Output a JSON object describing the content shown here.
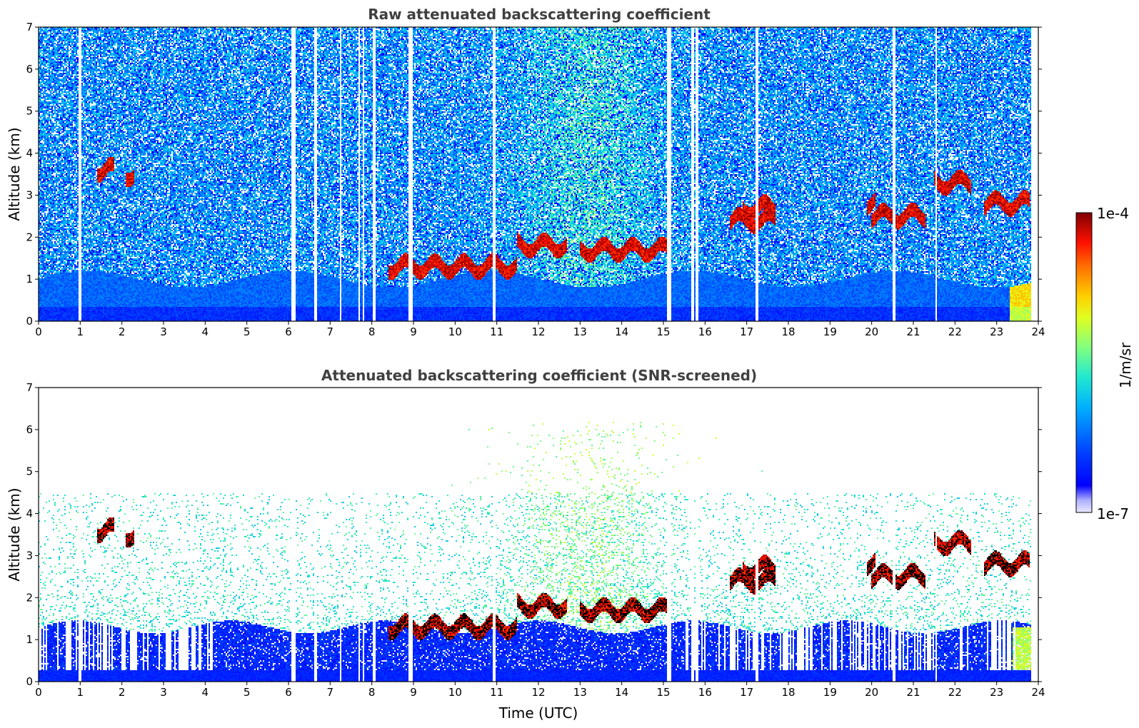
{
  "chart_data": [
    {
      "type": "heatmap",
      "title": "Raw attenuated backscattering coefficient",
      "xlabel": "",
      "ylabel": "Altitude (km)",
      "xlim": [
        0,
        24
      ],
      "ylim": [
        0,
        7
      ],
      "x_ticks": [
        "0",
        "1",
        "2",
        "3",
        "4",
        "5",
        "6",
        "7",
        "8",
        "9",
        "10",
        "11",
        "12",
        "13",
        "14",
        "15",
        "16",
        "17",
        "18",
        "19",
        "20",
        "21",
        "22",
        "23",
        "24"
      ],
      "y_ticks": [
        "0",
        "1",
        "2",
        "3",
        "4",
        "5",
        "6",
        "7"
      ],
      "boundary_layer_top_km": 1.0,
      "cloud_layers": [
        {
          "t_start": 1.4,
          "t_end": 1.8,
          "alt_km": 3.6
        },
        {
          "t_start": 2.1,
          "t_end": 2.3,
          "alt_km": 3.5
        },
        {
          "t_start": 8.4,
          "t_end": 11.5,
          "alt_km": 1.3
        },
        {
          "t_start": 11.5,
          "t_end": 12.7,
          "alt_km": 1.8
        },
        {
          "t_start": 13.0,
          "t_end": 15.1,
          "alt_km": 1.7
        },
        {
          "t_start": 16.6,
          "t_end": 17.7,
          "alt_km": 2.4
        },
        {
          "t_start": 16.9,
          "t_end": 17.7,
          "alt_km": 2.7
        },
        {
          "t_start": 19.9,
          "t_end": 20.1,
          "alt_km": 2.8
        },
        {
          "t_start": 20.0,
          "t_end": 21.3,
          "alt_km": 2.5
        },
        {
          "t_start": 21.5,
          "t_end": 22.4,
          "alt_km": 3.3
        },
        {
          "t_start": 22.7,
          "t_end": 23.8,
          "alt_km": 2.8
        }
      ]
    },
    {
      "type": "heatmap",
      "title": "Attenuated backscattering coefficient (SNR-screened)",
      "xlabel": "Time (UTC)",
      "ylabel": "Altitude (km)",
      "xlim": [
        0,
        24
      ],
      "ylim": [
        0,
        7
      ],
      "x_ticks": [
        "0",
        "1",
        "2",
        "3",
        "4",
        "5",
        "6",
        "7",
        "8",
        "9",
        "10",
        "11",
        "12",
        "13",
        "14",
        "15",
        "16",
        "17",
        "18",
        "19",
        "20",
        "21",
        "22",
        "23",
        "24"
      ],
      "y_ticks": [
        "0",
        "1",
        "2",
        "3",
        "4",
        "5",
        "6",
        "7"
      ],
      "boundary_layer_top_km": 1.3
    }
  ],
  "colorbar": {
    "max_label": "1e-4",
    "min_label": "1e-7",
    "label": "1/m/sr",
    "scale": "log",
    "range": [
      1e-07,
      0.0001
    ],
    "colormap": "jet",
    "bottom_color": "#e8e8ff",
    "top_color": "#800000"
  }
}
